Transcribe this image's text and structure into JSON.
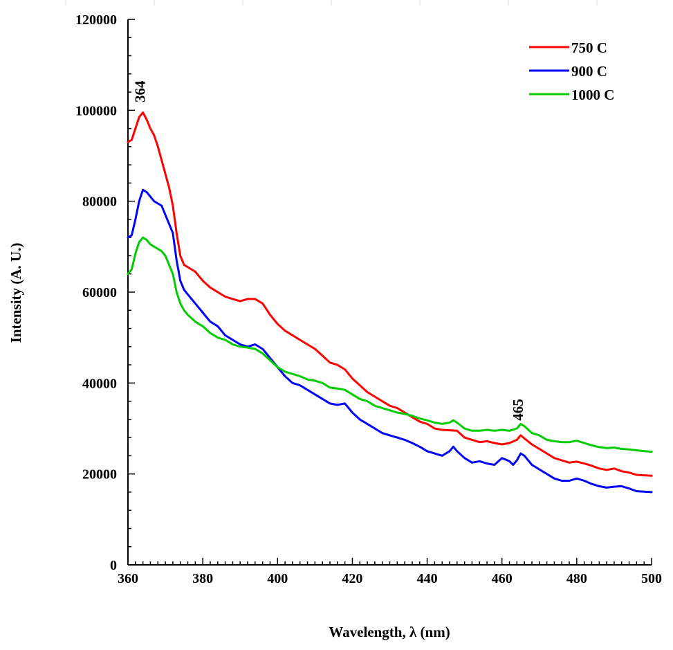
{
  "chart_data": {
    "type": "line",
    "title": "",
    "xlabel": "Wavelength, λ (nm)",
    "ylabel": "Intensity (A. U.)",
    "xlim": [
      360,
      500
    ],
    "ylim": [
      0,
      120000
    ],
    "xticks": [
      360,
      380,
      400,
      420,
      440,
      460,
      480,
      500
    ],
    "xtick_labels": [
      "360",
      "380",
      "400",
      "420",
      "440",
      "460",
      "480",
      "500"
    ],
    "yticks": [
      0,
      20000,
      40000,
      60000,
      80000,
      100000,
      120000
    ],
    "ytick_labels": [
      "0",
      "20000",
      "40000",
      "60000",
      "80000",
      "100000",
      "120000"
    ],
    "grid": false,
    "legend_position": "top-right",
    "series": [
      {
        "name": "750 C",
        "color": "#ff0000",
        "x": [
          360,
          361,
          362,
          363,
          364,
          365,
          366,
          367,
          368,
          369,
          370,
          371,
          372,
          373,
          374,
          375,
          376,
          378,
          380,
          382,
          384,
          386,
          388,
          390,
          392,
          394,
          396,
          398,
          400,
          402,
          404,
          406,
          408,
          410,
          412,
          414,
          416,
          418,
          420,
          422,
          424,
          426,
          428,
          430,
          432,
          434,
          436,
          438,
          440,
          442,
          444,
          446,
          448,
          450,
          452,
          454,
          456,
          458,
          460,
          462,
          464,
          465,
          466,
          468,
          470,
          472,
          474,
          476,
          478,
          480,
          482,
          484,
          486,
          488,
          490,
          492,
          494,
          496,
          498,
          500
        ],
        "y": [
          93000,
          93500,
          96000,
          98500,
          99500,
          98000,
          96000,
          94500,
          92000,
          89000,
          86000,
          83000,
          79000,
          73000,
          68000,
          66000,
          65500,
          64500,
          62500,
          61000,
          60000,
          59000,
          58500,
          58000,
          58500,
          58500,
          57500,
          55000,
          53000,
          51500,
          50500,
          49500,
          48500,
          47500,
          46000,
          44500,
          44000,
          43000,
          41000,
          39500,
          38000,
          37000,
          36000,
          35000,
          34500,
          33500,
          32500,
          31500,
          31000,
          30000,
          29700,
          29600,
          29500,
          28000,
          27500,
          27000,
          27200,
          26800,
          26500,
          26800,
          27500,
          28500,
          27800,
          26500,
          25500,
          24500,
          23500,
          23000,
          22500,
          22700,
          22300,
          21800,
          21200,
          20900,
          21200,
          20600,
          20300,
          19800,
          19700,
          19600
        ]
      },
      {
        "name": "900 C",
        "color": "#0000ff",
        "x": [
          360,
          361,
          362,
          363,
          364,
          365,
          366,
          367,
          368,
          369,
          370,
          371,
          372,
          373,
          374,
          375,
          376,
          378,
          380,
          382,
          384,
          386,
          388,
          390,
          392,
          394,
          396,
          398,
          400,
          402,
          404,
          406,
          408,
          410,
          412,
          414,
          416,
          418,
          420,
          422,
          424,
          426,
          428,
          430,
          432,
          434,
          436,
          438,
          440,
          442,
          444,
          446,
          447,
          448,
          450,
          452,
          454,
          456,
          458,
          460,
          462,
          463,
          464,
          465,
          466,
          468,
          470,
          472,
          474,
          476,
          478,
          480,
          482,
          484,
          486,
          488,
          490,
          492,
          494,
          496,
          498,
          500
        ],
        "y": [
          72000,
          72500,
          76000,
          80000,
          82500,
          82000,
          81000,
          80000,
          79500,
          79000,
          77000,
          75000,
          73000,
          67000,
          62500,
          60500,
          59500,
          57500,
          55500,
          53500,
          52500,
          50500,
          49500,
          48500,
          48000,
          48500,
          47500,
          45500,
          43500,
          41500,
          40000,
          39500,
          38500,
          37500,
          36500,
          35500,
          35200,
          35500,
          33500,
          32000,
          31000,
          30000,
          29000,
          28500,
          28000,
          27500,
          26800,
          26000,
          25000,
          24500,
          24000,
          25000,
          26000,
          25000,
          23500,
          22500,
          22800,
          22300,
          22000,
          23500,
          22800,
          22000,
          23000,
          24500,
          24000,
          22000,
          21000,
          20000,
          19000,
          18500,
          18500,
          19000,
          18500,
          17800,
          17300,
          17000,
          17200,
          17300,
          16800,
          16200,
          16100,
          16000
        ]
      },
      {
        "name": "1000 C",
        "color": "#00cc00",
        "x": [
          360,
          361,
          362,
          363,
          364,
          365,
          366,
          367,
          368,
          369,
          370,
          371,
          372,
          373,
          374,
          375,
          376,
          378,
          380,
          382,
          384,
          386,
          388,
          390,
          392,
          394,
          396,
          398,
          400,
          402,
          404,
          406,
          408,
          410,
          412,
          414,
          416,
          418,
          420,
          422,
          424,
          426,
          428,
          430,
          432,
          434,
          436,
          438,
          440,
          442,
          444,
          446,
          447,
          448,
          450,
          452,
          454,
          456,
          458,
          460,
          462,
          464,
          465,
          466,
          468,
          470,
          472,
          474,
          476,
          478,
          480,
          482,
          484,
          486,
          488,
          490,
          492,
          494,
          496,
          498,
          500
        ],
        "y": [
          64000,
          65000,
          68500,
          71000,
          72000,
          71500,
          70500,
          70000,
          69500,
          69000,
          68000,
          66000,
          64000,
          60000,
          57500,
          56000,
          55000,
          53500,
          52500,
          51000,
          50000,
          49500,
          48500,
          48000,
          47800,
          47500,
          46500,
          45000,
          43500,
          42500,
          42000,
          41500,
          40800,
          40500,
          40000,
          39000,
          38800,
          38500,
          37500,
          36500,
          36000,
          35000,
          34500,
          34000,
          33500,
          33200,
          32800,
          32200,
          31800,
          31300,
          31000,
          31300,
          31800,
          31300,
          30000,
          29500,
          29500,
          29700,
          29500,
          29700,
          29500,
          30000,
          31000,
          30500,
          29000,
          28500,
          27500,
          27200,
          27000,
          27000,
          27300,
          26800,
          26300,
          25900,
          25700,
          25800,
          25500,
          25400,
          25200,
          25000,
          24900
        ]
      }
    ],
    "annotations": [
      {
        "text": "364",
        "x": 364,
        "y": 100500
      },
      {
        "text": "465",
        "x": 465,
        "y": 30500
      }
    ]
  }
}
